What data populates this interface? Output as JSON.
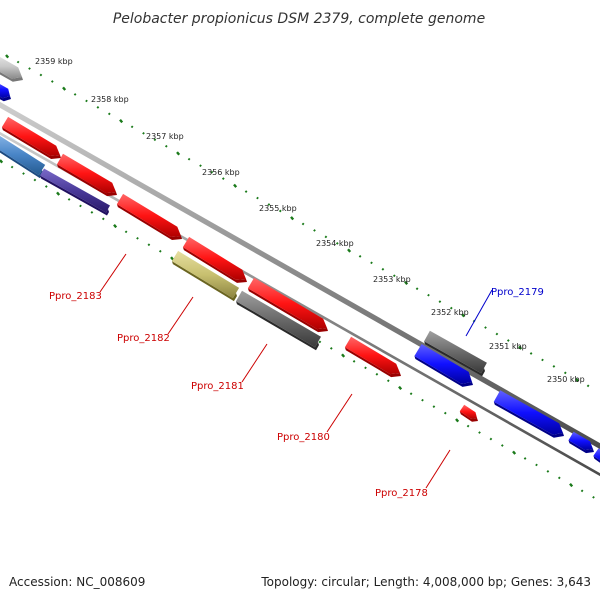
{
  "title": "Pelobacter propionicus DSM 2379, complete genome",
  "footer": {
    "accession": "Accession: NC_008609",
    "summary": "Topology: circular; Length: 4,008,000 bp; Genes: 3,643"
  },
  "ruler": {
    "unit": "kbp",
    "ticks": [
      "2359 kbp",
      "2358 kbp",
      "2357 kbp",
      "2356 kbp",
      "2355 kbp",
      "2354 kbp",
      "2353 kbp",
      "2352 kbp",
      "2351 kbp",
      "2350 kbp"
    ]
  },
  "gene_labels": [
    {
      "name": "Ppro_2183",
      "color": "#cc0000"
    },
    {
      "name": "Ppro_2182",
      "color": "#cc0000"
    },
    {
      "name": "Ppro_2181",
      "color": "#cc0000"
    },
    {
      "name": "Ppro_2180",
      "color": "#cc0000"
    },
    {
      "name": "Ppro_2178",
      "color": "#cc0000"
    },
    {
      "name": "Ppro_2179",
      "color": "#0000cc"
    }
  ],
  "colors": {
    "backbone": "#8a8a8a",
    "tick_green": "#1a7a1a",
    "feature_red": "#ff1a1a",
    "feature_blue": "#1010ff",
    "feature_gray": "#6a6a6a",
    "feature_olive": "#c8c070",
    "feature_steel": "#4a86c8",
    "feature_purple": "#4a3a9a"
  }
}
